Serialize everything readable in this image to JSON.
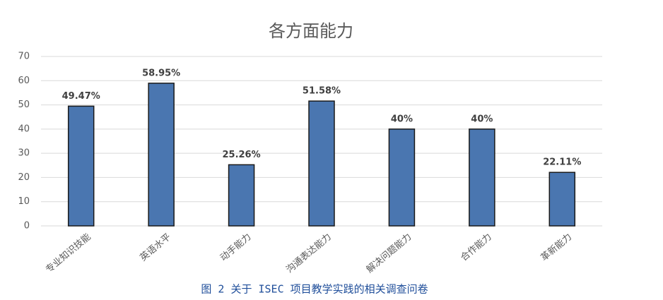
{
  "chart_data": {
    "type": "bar",
    "title": "各方面能力",
    "categories": [
      "专业知识技能",
      "英语水平",
      "动手能力",
      "沟通表达能力",
      "解决问题能力",
      "合作能力",
      "革新能力"
    ],
    "values": [
      49.47,
      58.95,
      25.26,
      51.58,
      40,
      40,
      22.11
    ],
    "value_labels": [
      "49.47%",
      "58.95%",
      "25.26%",
      "51.58%",
      "40%",
      "40%",
      "22.11%"
    ],
    "color": "#4a76b0",
    "ylim": [
      0,
      70
    ],
    "yticks": [
      0,
      10,
      20,
      30,
      40,
      50,
      60,
      70
    ],
    "grid": true
  },
  "caption": "图 2 关于 ISEC 项目教学实践的相关调查问卷"
}
